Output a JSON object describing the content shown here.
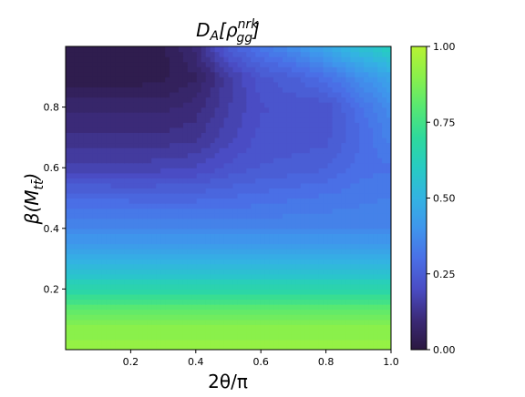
{
  "chart_data": {
    "type": "heatmap",
    "subtype": "filled-contour",
    "title": {
      "main": "D",
      "main_sub": "A",
      "open": "[ρ",
      "sup": "nrk",
      "sub": "gg",
      "close": "]"
    },
    "xlabel": "2θ/π",
    "ylabel": {
      "main": "β(M",
      "sub": "tt̄",
      "close": ")"
    },
    "xlim": [
      0.0,
      1.0
    ],
    "ylim": [
      0.0,
      1.0
    ],
    "xticks": [
      {
        "value": 0.2,
        "label": "0.2"
      },
      {
        "value": 0.4,
        "label": "0.4"
      },
      {
        "value": 0.6,
        "label": "0.6"
      },
      {
        "value": 0.8,
        "label": "0.8"
      },
      {
        "value": 1.0,
        "label": "1.0"
      }
    ],
    "yticks": [
      {
        "value": 0.2,
        "label": "0.2"
      },
      {
        "value": 0.4,
        "label": "0.4"
      },
      {
        "value": 0.6,
        "label": "0.6"
      },
      {
        "value": 0.8,
        "label": "0.8"
      }
    ],
    "colorbar": {
      "colormap": "turbo-like (dark purple → blue → cyan → green → yellow-green)",
      "range": [
        0.0,
        1.0
      ],
      "ticks": [
        {
          "value": 0.0,
          "label": "0.00"
        },
        {
          "value": 0.25,
          "label": "0.25"
        },
        {
          "value": 0.5,
          "label": "0.50"
        },
        {
          "value": 0.75,
          "label": "0.75"
        },
        {
          "value": 1.0,
          "label": "1.00"
        }
      ],
      "stops": [
        {
          "value": 0.0,
          "color": "#2b1840"
        },
        {
          "value": 0.1,
          "color": "#3b2a78"
        },
        {
          "value": 0.2,
          "color": "#4a4cc4"
        },
        {
          "value": 0.3,
          "color": "#4a6fe6"
        },
        {
          "value": 0.4,
          "color": "#3f95ec"
        },
        {
          "value": 0.5,
          "color": "#33b3e2"
        },
        {
          "value": 0.6,
          "color": "#27cbc3"
        },
        {
          "value": 0.7,
          "color": "#2ed99c"
        },
        {
          "value": 0.8,
          "color": "#57e872"
        },
        {
          "value": 0.9,
          "color": "#8af04b"
        },
        {
          "value": 1.0,
          "color": "#b7f233"
        }
      ]
    },
    "grid": false,
    "field_samples": {
      "x": [
        0.0,
        0.1,
        0.2,
        0.3,
        0.4,
        0.5,
        0.6,
        0.7,
        0.8,
        0.9,
        1.0
      ],
      "y": [
        0.0,
        0.1,
        0.2,
        0.3,
        0.4,
        0.5,
        0.6,
        0.7,
        0.8,
        0.9,
        1.0
      ],
      "values_description_free": true,
      "z": [
        [
          0.93,
          0.93,
          0.93,
          0.93,
          0.93,
          0.93,
          0.93,
          0.93,
          0.93,
          0.93,
          0.93
        ],
        [
          0.88,
          0.88,
          0.88,
          0.88,
          0.88,
          0.88,
          0.88,
          0.88,
          0.88,
          0.88,
          0.88
        ],
        [
          0.66,
          0.66,
          0.66,
          0.66,
          0.66,
          0.66,
          0.66,
          0.66,
          0.66,
          0.66,
          0.66
        ],
        [
          0.48,
          0.48,
          0.48,
          0.48,
          0.48,
          0.48,
          0.48,
          0.48,
          0.48,
          0.48,
          0.48
        ],
        [
          0.36,
          0.36,
          0.36,
          0.36,
          0.36,
          0.36,
          0.36,
          0.36,
          0.36,
          0.36,
          0.36
        ],
        [
          0.29,
          0.29,
          0.28,
          0.28,
          0.28,
          0.29,
          0.3,
          0.31,
          0.32,
          0.33,
          0.34
        ],
        [
          0.17,
          0.17,
          0.17,
          0.18,
          0.19,
          0.22,
          0.24,
          0.25,
          0.26,
          0.3,
          0.31
        ],
        [
          0.12,
          0.12,
          0.12,
          0.12,
          0.13,
          0.18,
          0.22,
          0.22,
          0.23,
          0.28,
          0.35
        ],
        [
          0.08,
          0.08,
          0.08,
          0.08,
          0.1,
          0.16,
          0.21,
          0.22,
          0.22,
          0.3,
          0.38
        ],
        [
          0.02,
          0.02,
          0.02,
          0.03,
          0.06,
          0.15,
          0.23,
          0.26,
          0.3,
          0.38,
          0.45
        ],
        [
          0.02,
          0.02,
          0.02,
          0.03,
          0.1,
          0.25,
          0.32,
          0.38,
          0.46,
          0.55,
          0.62
        ]
      ]
    }
  }
}
